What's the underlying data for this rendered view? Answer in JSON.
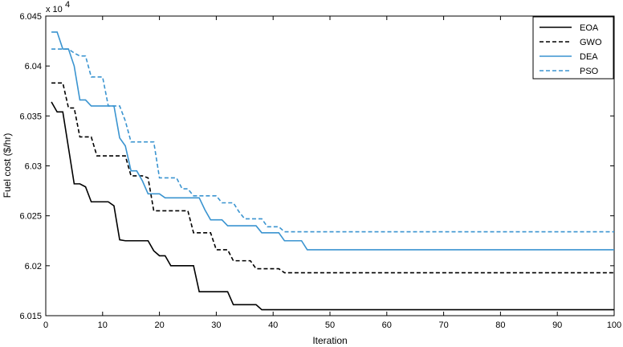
{
  "chart_data": {
    "type": "line",
    "xlabel": "Iteration",
    "ylabel": "Fuel cost ($/hr)",
    "y_scale_label": "x 10",
    "y_scale_exponent": "4",
    "xlim": [
      0,
      100
    ],
    "ylim": [
      6.015,
      6.045
    ],
    "x_ticks": [
      "0",
      "10",
      "20",
      "30",
      "40",
      "50",
      "60",
      "70",
      "80",
      "90",
      "100"
    ],
    "y_ticks": [
      "6.015",
      "6.02",
      "6.025",
      "6.03",
      "6.035",
      "6.04",
      "6.045"
    ],
    "x_tick_values": [
      0,
      10,
      20,
      30,
      40,
      50,
      60,
      70,
      80,
      90,
      100
    ],
    "y_tick_values": [
      6.015,
      6.02,
      6.025,
      6.03,
      6.035,
      6.04,
      6.045
    ],
    "grid": false,
    "legend_position": "top-right",
    "series": [
      {
        "name": "EOA",
        "color": "#000000",
        "dash": "solid",
        "points": [
          [
            1,
            6.0364
          ],
          [
            2,
            6.0354
          ],
          [
            3,
            6.0354
          ],
          [
            4,
            6.0318
          ],
          [
            5,
            6.0282
          ],
          [
            6,
            6.0282
          ],
          [
            7,
            6.0279
          ],
          [
            8,
            6.0264
          ],
          [
            11,
            6.0264
          ],
          [
            12,
            6.026
          ],
          [
            13,
            6.0226
          ],
          [
            14,
            6.0225
          ],
          [
            18,
            6.0225
          ],
          [
            19,
            6.0215
          ],
          [
            20,
            6.021
          ],
          [
            21,
            6.021
          ],
          [
            22,
            6.02
          ],
          [
            26,
            6.02
          ],
          [
            27,
            6.0174
          ],
          [
            32,
            6.0174
          ],
          [
            33,
            6.0161
          ],
          [
            37,
            6.0161
          ],
          [
            38,
            6.0156
          ],
          [
            100,
            6.0156
          ]
        ]
      },
      {
        "name": "GWO",
        "color": "#000000",
        "dash": "dashed",
        "points": [
          [
            1,
            6.0383
          ],
          [
            3,
            6.0383
          ],
          [
            4,
            6.0358
          ],
          [
            5,
            6.0358
          ],
          [
            6,
            6.0329
          ],
          [
            8,
            6.0329
          ],
          [
            9,
            6.031
          ],
          [
            14,
            6.031
          ],
          [
            15,
            6.029
          ],
          [
            17,
            6.029
          ],
          [
            18,
            6.0288
          ],
          [
            19,
            6.0255
          ],
          [
            25,
            6.0255
          ],
          [
            26,
            6.0233
          ],
          [
            29,
            6.0233
          ],
          [
            30,
            6.0216
          ],
          [
            32,
            6.0216
          ],
          [
            33,
            6.0205
          ],
          [
            36,
            6.0205
          ],
          [
            37,
            6.0197
          ],
          [
            41,
            6.0197
          ],
          [
            42,
            6.0193
          ],
          [
            100,
            6.0193
          ]
        ]
      },
      {
        "name": "DEA",
        "color": "#3a94d0",
        "dash": "solid",
        "points": [
          [
            1,
            6.0434
          ],
          [
            2,
            6.0434
          ],
          [
            3,
            6.0417
          ],
          [
            4,
            6.0417
          ],
          [
            5,
            6.04
          ],
          [
            6,
            6.0366
          ],
          [
            7,
            6.0366
          ],
          [
            8,
            6.036
          ],
          [
            12,
            6.036
          ],
          [
            13,
            6.0328
          ],
          [
            14,
            6.032
          ],
          [
            15,
            6.0295
          ],
          [
            16,
            6.0295
          ],
          [
            17,
            6.0285
          ],
          [
            18,
            6.0272
          ],
          [
            20,
            6.0272
          ],
          [
            21,
            6.0268
          ],
          [
            27,
            6.0268
          ],
          [
            28,
            6.0256
          ],
          [
            29,
            6.0246
          ],
          [
            31,
            6.0246
          ],
          [
            32,
            6.024
          ],
          [
            37,
            6.024
          ],
          [
            38,
            6.0233
          ],
          [
            41,
            6.0233
          ],
          [
            42,
            6.0225
          ],
          [
            45,
            6.0225
          ],
          [
            46,
            6.0216
          ],
          [
            100,
            6.0216
          ]
        ]
      },
      {
        "name": "PSO",
        "color": "#3a94d0",
        "dash": "dashed",
        "points": [
          [
            1,
            6.0417
          ],
          [
            4,
            6.0417
          ],
          [
            5,
            6.0413
          ],
          [
            6,
            6.041
          ],
          [
            7,
            6.041
          ],
          [
            8,
            6.0389
          ],
          [
            10,
            6.0389
          ],
          [
            11,
            6.036
          ],
          [
            13,
            6.036
          ],
          [
            14,
            6.0345
          ],
          [
            15,
            6.0324
          ],
          [
            19,
            6.0324
          ],
          [
            20,
            6.0288
          ],
          [
            23,
            6.0288
          ],
          [
            24,
            6.0277
          ],
          [
            25,
            6.0277
          ],
          [
            26,
            6.027
          ],
          [
            30,
            6.027
          ],
          [
            31,
            6.0263
          ],
          [
            33,
            6.0263
          ],
          [
            34,
            6.0254
          ],
          [
            35,
            6.0247
          ],
          [
            38,
            6.0247
          ],
          [
            39,
            6.0239
          ],
          [
            41,
            6.0239
          ],
          [
            42,
            6.0234
          ],
          [
            100,
            6.0234
          ]
        ]
      }
    ]
  }
}
